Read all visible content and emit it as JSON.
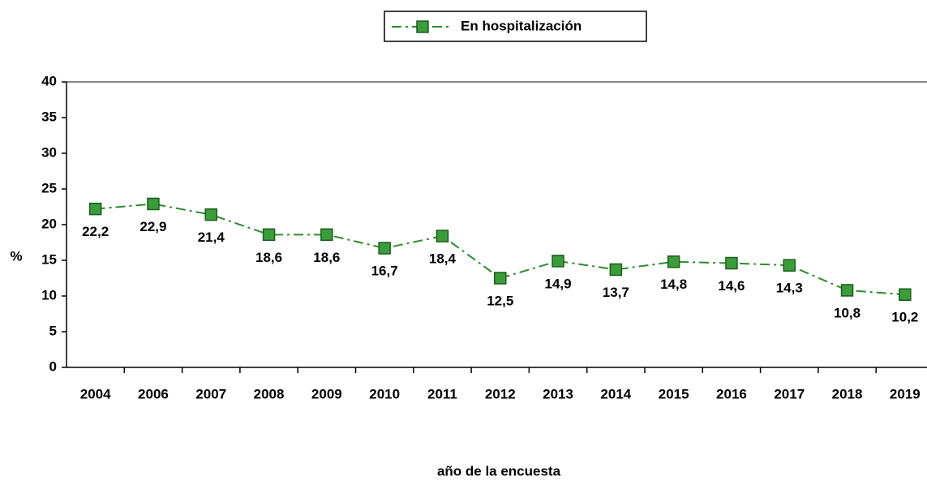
{
  "chart_data": {
    "type": "line",
    "x_label": "año de la encuesta",
    "y_label": "%",
    "categories": [
      "2004",
      "2006",
      "2007",
      "2008",
      "2009",
      "2010",
      "2011",
      "2012",
      "2013",
      "2014",
      "2015",
      "2016",
      "2017",
      "2018",
      "2019"
    ],
    "series": [
      {
        "name": "En hospitalización",
        "color": "#2e8b2e",
        "values": [
          22.2,
          22.9,
          21.4,
          18.6,
          18.6,
          16.7,
          18.4,
          12.5,
          14.9,
          13.7,
          14.8,
          14.6,
          14.3,
          10.8,
          10.2
        ],
        "value_labels": [
          "22,2",
          "22,9",
          "21,4",
          "18,6",
          "18,6",
          "16,7",
          "18,4",
          "12,5",
          "14,9",
          "13,7",
          "14,8",
          "14,6",
          "14,3",
          "10,8",
          "10,2"
        ]
      }
    ],
    "ylim": [
      0,
      40
    ],
    "yticks": [
      0,
      5,
      10,
      15,
      20,
      25,
      30,
      35,
      40
    ],
    "legend": "top"
  }
}
